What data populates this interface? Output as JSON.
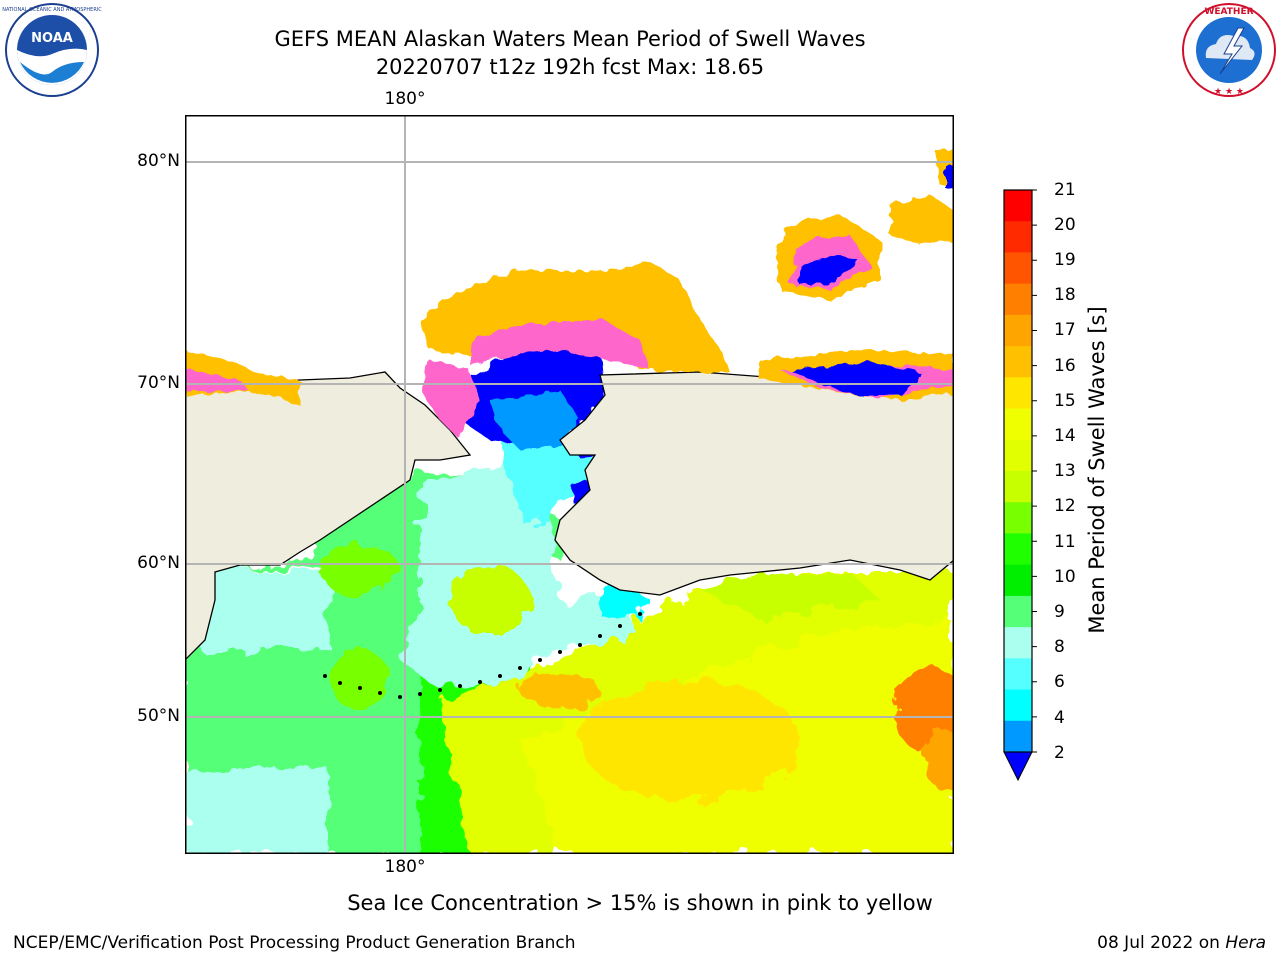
{
  "header": {
    "title_line1": "GEFS MEAN Alaskan Waters Mean Period of Swell Waves",
    "title_line2": "20220707 t12z 192h fcst   Max: 18.65"
  },
  "logos": {
    "left_name": "noaa-logo",
    "left_text": "NOAA",
    "left_ring_text": "NATIONAL OCEANIC AND ATMOSPHERIC ADMINISTRATION · U.S. DEPARTMENT OF COMMERCE",
    "right_name": "nws-logo",
    "right_ring_text": "NATIONAL WEATHER SERVICE"
  },
  "map": {
    "lon_label_top": "180°",
    "lon_label_bottom": "180°",
    "lat_labels": [
      "80°N",
      "70°N",
      "60°N",
      "50°N"
    ],
    "land_color": "#efedde",
    "ocean_no_data_color": "#ffffff",
    "grid_color": "#b4b4b4"
  },
  "colorbar": {
    "label": "Mean Period of Swell Waves [s]",
    "ticks": [
      "21",
      "20",
      "19",
      "18",
      "17",
      "16",
      "15",
      "14",
      "13",
      "12",
      "11",
      "10",
      "9",
      "8",
      "6",
      "4",
      "2"
    ],
    "colors_top_to_bottom": [
      "#ff0000",
      "#ff2a00",
      "#ff5500",
      "#ff7f00",
      "#ffa500",
      "#ffc000",
      "#ffe600",
      "#f0ff00",
      "#e1ff00",
      "#c8ff00",
      "#78ff00",
      "#1fff00",
      "#00ee00",
      "#55ff77",
      "#aaffee",
      "#55ffff",
      "#00ffff",
      "#0099ff"
    ],
    "under_color": "#0000ff"
  },
  "note": "Sea Ice Concentration > 15% is shown in pink to yellow",
  "footer": {
    "left": "NCEP/EMC/Verification Post Processing Product Generation Branch",
    "right_text": "08 Jul 2022 on ",
    "right_host": "Hera"
  }
}
